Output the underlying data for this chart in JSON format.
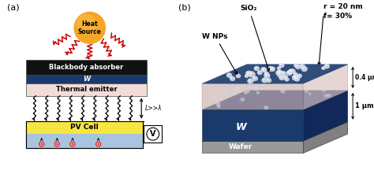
{
  "panel_a_label": "(a)",
  "panel_b_label": "(b)",
  "heat_source_color": "#F5A623",
  "heat_source_inner": "#F8C050",
  "heat_source_text": "Heat\nSource",
  "blackbody_color": "#111111",
  "blackbody_text": "Blackbody absorber",
  "W_layer_color": "#1a3a6b",
  "W_layer_text": "W",
  "thermal_emitter_color": "#f2dcd8",
  "thermal_emitter_text": "Thermal emitter",
  "pv_yellow_color": "#f5e642",
  "pv_blue_color": "#a8c4e0",
  "pv_text": "PV Cell",
  "L_label": "L>>λ",
  "V_label": "V",
  "arrow_red": "#cc0000",
  "sio2_text": "SiO₂",
  "wnps_text": "W NPs",
  "r_text": "r = 20 nm",
  "f_text": "f= 30%",
  "um04_text": "0.4 μm",
  "um1_text": "1 μm",
  "W_block_text": "W",
  "wafer_text": "Wafer",
  "sio2_face_color": "#c8b0ae",
  "sio2_top_color": "#1a3a6b",
  "sio2_side_color": "#d8c0be",
  "W_front_color": "#1a3a6b",
  "W_top_color": "#253d78",
  "W_right_color": "#12285a",
  "wafer_front_color": "#999999",
  "wafer_top_color": "#b0b0b0",
  "wafer_right_color": "#808080",
  "np_color": "#ccd4e4",
  "bg_color": "#ffffff"
}
